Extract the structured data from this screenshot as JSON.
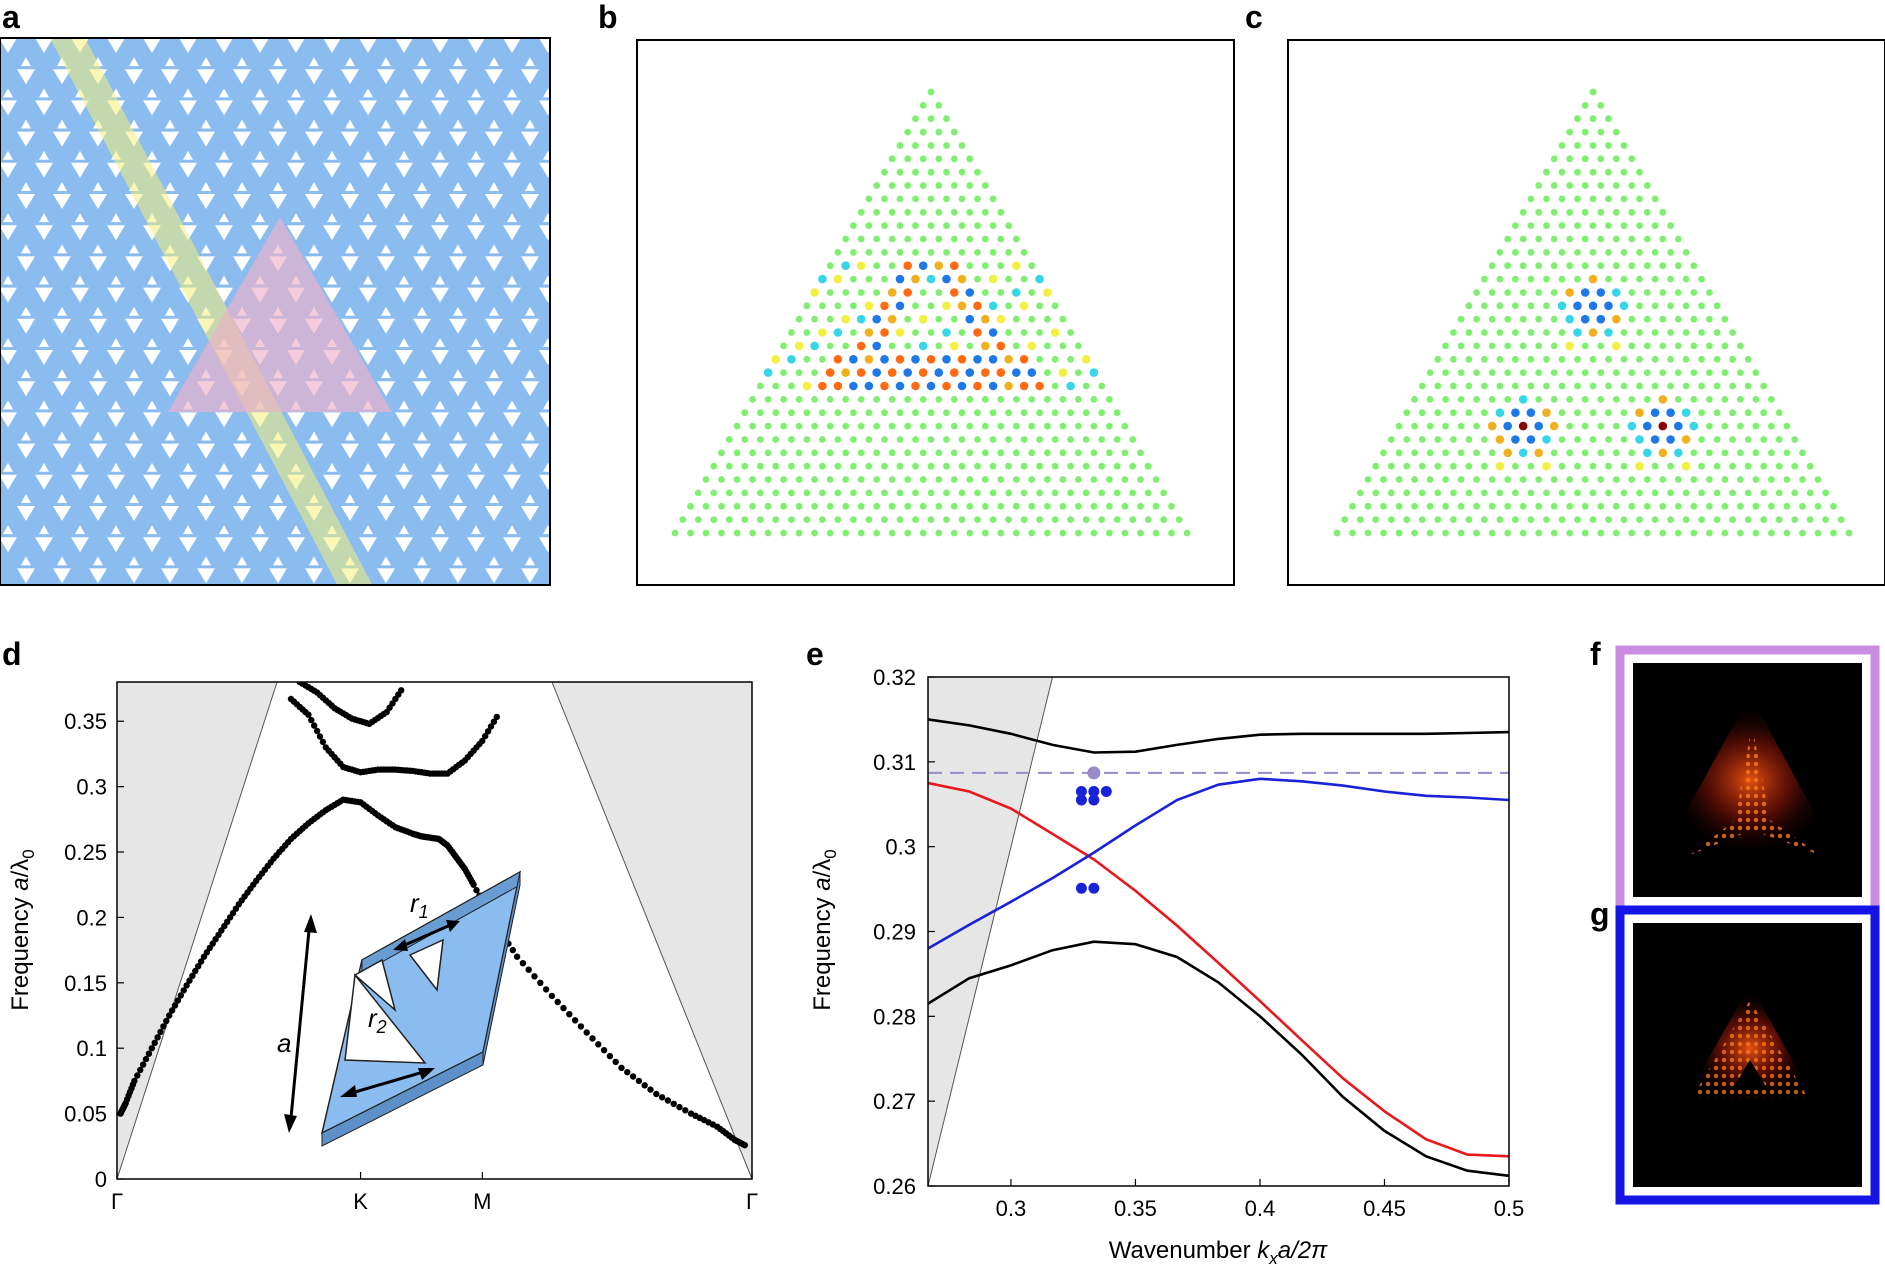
{
  "panels": {
    "a": "a",
    "b": "b",
    "c": "c",
    "d": "d",
    "e": "e",
    "f": "f",
    "g": "g"
  },
  "colors": {
    "slab_blue": "#8bbcf0",
    "highlight_yellow": "#f4ef7a",
    "highlight_pink": "#f0b0c8",
    "lightcone_gray": "#e6e6e6",
    "curve_black": "#000000",
    "curve_red": "#e8181c",
    "curve_blue": "#1a22d8",
    "dashed_purple": "#9b8ac8",
    "frame_f": "#c98ce0",
    "frame_g": "#1414e6",
    "dot_green": "#80ee70"
  },
  "inset": {
    "r1": "r",
    "r1_sub": "1",
    "r2": "r",
    "r2_sub": "2",
    "a": "a"
  },
  "chart_data": [
    {
      "id": "d",
      "type": "scatter",
      "title": "",
      "xlabel": "",
      "ylabel": "Frequency a/λ0",
      "ylabel_parts": {
        "pre": "Frequency ",
        "italic": "a",
        "mid": "/λ",
        "sub": "0"
      },
      "xticks": [
        "Γ",
        "K",
        "M",
        "Γ"
      ],
      "yticks": [
        "0",
        "0.05",
        "0.1",
        "0.15",
        "0.2",
        "0.25",
        "0.3",
        "0.35"
      ],
      "ylim": [
        0,
        0.38
      ],
      "series": [
        {
          "name": "band1",
          "x": [
            0.02,
            0.05,
            0.1,
            0.2,
            0.3,
            0.4,
            0.5,
            0.6,
            0.7,
            0.8,
            0.9,
            1.0,
            1.1,
            1.2,
            1.3,
            1.4,
            1.5,
            1.6,
            1.7,
            1.75,
            1.8,
            1.85,
            1.9,
            1.95,
            2.0,
            2.05,
            2.15,
            2.3,
            2.5,
            2.7,
            2.9,
            3.1,
            3.3,
            3.45,
            3.55,
            3.62
          ],
          "y": [
            0.05,
            0.058,
            0.075,
            0.1,
            0.125,
            0.148,
            0.17,
            0.19,
            0.21,
            0.228,
            0.245,
            0.26,
            0.272,
            0.282,
            0.29,
            0.288,
            0.278,
            0.269,
            0.264,
            0.262,
            0.261,
            0.26,
            0.255,
            0.246,
            0.237,
            0.225,
            0.2,
            0.17,
            0.14,
            0.112,
            0.085,
            0.065,
            0.05,
            0.04,
            0.03,
            0.025
          ]
        },
        {
          "name": "band2",
          "x": [
            1.0,
            1.1,
            1.2,
            1.3,
            1.4,
            1.5,
            1.6,
            1.7,
            1.8,
            1.9,
            2.0,
            2.1,
            2.2
          ],
          "y": [
            0.367,
            0.355,
            0.33,
            0.315,
            0.311,
            0.313,
            0.313,
            0.312,
            0.31,
            0.31,
            0.32,
            0.335,
            0.357
          ]
        },
        {
          "name": "band3",
          "x": [
            1.05,
            1.15,
            1.25,
            1.35,
            1.45,
            1.55,
            1.65
          ],
          "y": [
            0.38,
            0.372,
            0.36,
            0.352,
            0.348,
            0.357,
            0.377
          ]
        }
      ],
      "lightcone_edges": [
        [
          0,
          0,
          0.92,
          0.38
        ],
        [
          3.65,
          0,
          2.5,
          0.38
        ]
      ],
      "x_range": [
        0,
        3.65
      ],
      "tick_positions": [
        0,
        1.4,
        2.1,
        3.65
      ]
    },
    {
      "id": "e",
      "type": "line",
      "title": "",
      "xlabel": "Wavenumber kxa/2π",
      "xlabel_parts": {
        "pre": "Wavenumber ",
        "k": "k",
        "sub": "x",
        "post": "a/2π"
      },
      "ylabel": "Frequency a/λ0",
      "ylabel_parts": {
        "pre": "Frequency ",
        "italic": "a",
        "mid": "/λ",
        "sub": "0"
      },
      "xlim": [
        0.2667,
        0.5
      ],
      "ylim": [
        0.26,
        0.32
      ],
      "xticks": [
        "0.3",
        "0.35",
        "0.4",
        "0.45",
        "0.5"
      ],
      "xtick_values": [
        0.3,
        0.35,
        0.4,
        0.45,
        0.5
      ],
      "yticks": [
        "0.26",
        "0.27",
        "0.28",
        "0.29",
        "0.3",
        "0.31",
        "0.32"
      ],
      "ytick_values": [
        0.26,
        0.27,
        0.28,
        0.29,
        0.3,
        0.31,
        0.32
      ],
      "series": [
        {
          "name": "upper-black",
          "x": [
            0.2667,
            0.2833,
            0.3,
            0.3167,
            0.3333,
            0.35,
            0.3667,
            0.3833,
            0.4,
            0.4167,
            0.4333,
            0.45,
            0.4667,
            0.4833,
            0.5
          ],
          "y": [
            0.315,
            0.3143,
            0.3133,
            0.312,
            0.3111,
            0.3112,
            0.312,
            0.3127,
            0.3132,
            0.3133,
            0.3133,
            0.3133,
            0.3133,
            0.3134,
            0.3135
          ]
        },
        {
          "name": "lower-black",
          "x": [
            0.2667,
            0.2833,
            0.3,
            0.3167,
            0.3333,
            0.35,
            0.3667,
            0.3833,
            0.4,
            0.4167,
            0.4333,
            0.45,
            0.4667,
            0.4833,
            0.5
          ],
          "y": [
            0.2815,
            0.2845,
            0.286,
            0.2878,
            0.2888,
            0.2885,
            0.287,
            0.284,
            0.28,
            0.2755,
            0.2705,
            0.2665,
            0.2635,
            0.2618,
            0.2612
          ]
        },
        {
          "name": "red",
          "x": [
            0.2667,
            0.2833,
            0.3,
            0.3167,
            0.3333,
            0.35,
            0.3667,
            0.3833,
            0.4,
            0.4167,
            0.4333,
            0.45,
            0.4667,
            0.4833,
            0.5
          ],
          "y": [
            0.3075,
            0.3065,
            0.3045,
            0.3015,
            0.2985,
            0.2948,
            0.2907,
            0.2863,
            0.2818,
            0.2772,
            0.2727,
            0.2688,
            0.2655,
            0.2637,
            0.2635
          ]
        },
        {
          "name": "blue",
          "x": [
            0.2667,
            0.2833,
            0.3,
            0.3167,
            0.3333,
            0.35,
            0.3667,
            0.3833,
            0.4,
            0.4167,
            0.4333,
            0.45,
            0.4667,
            0.4833,
            0.5
          ],
          "y": [
            0.288,
            0.2908,
            0.2935,
            0.2963,
            0.2993,
            0.3025,
            0.3055,
            0.3073,
            0.308,
            0.3077,
            0.3072,
            0.3065,
            0.306,
            0.3058,
            0.3055
          ]
        }
      ],
      "dashed_level": 0.3087,
      "purple_point": [
        0.3333,
        0.3087
      ],
      "blue_points": [
        [
          0.3283,
          0.3065
        ],
        [
          0.3333,
          0.3065
        ],
        [
          0.3383,
          0.3065
        ],
        [
          0.3283,
          0.3055
        ],
        [
          0.3333,
          0.3055
        ],
        [
          0.3283,
          0.2951
        ],
        [
          0.3333,
          0.2951
        ]
      ],
      "lightcone": [
        [
          0.2667,
          0.26
        ],
        [
          0.2667,
          0.32
        ],
        [
          0.3167,
          0.32
        ],
        [
          0.2667,
          0.26
        ]
      ]
    }
  ]
}
